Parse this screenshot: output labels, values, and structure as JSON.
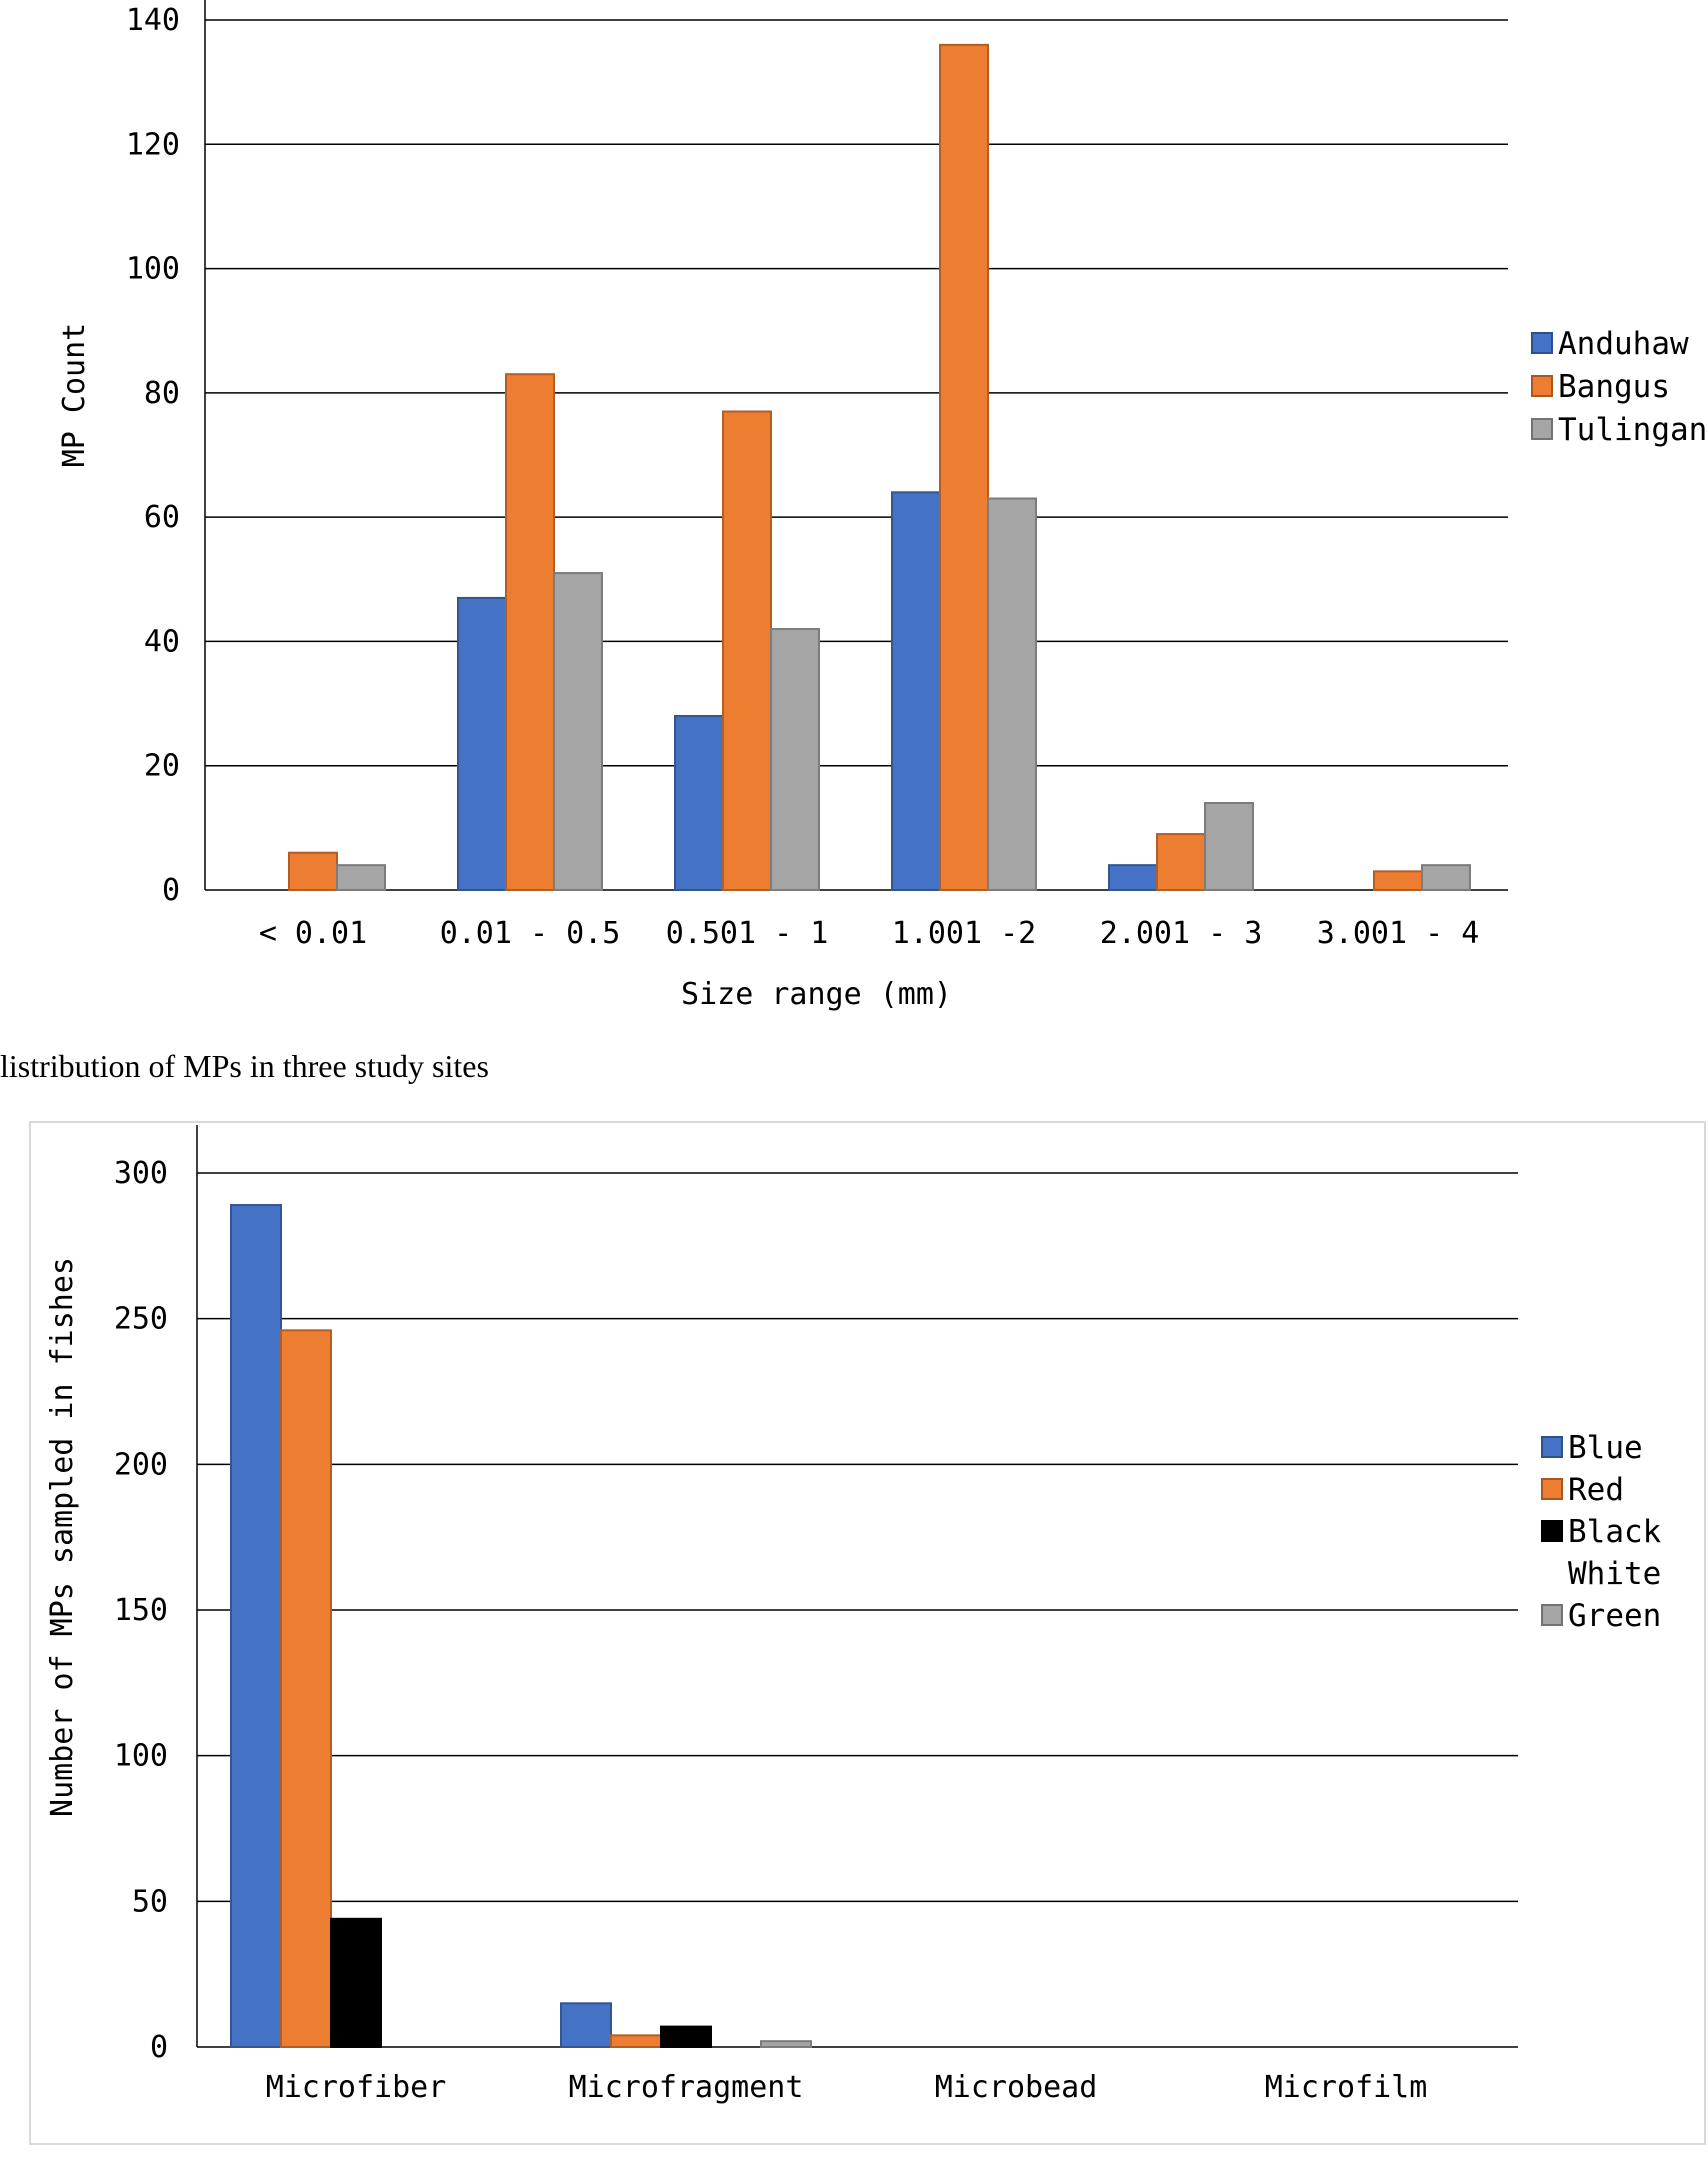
{
  "caption": "listribution of MPs in three study sites",
  "colors": {
    "blue": "#4472c4",
    "orange": "#ed7d31",
    "gray": "#a5a5a5",
    "black": "#000000"
  },
  "chart_data": [
    {
      "type": "bar",
      "xlabel": "Size range  (mm)",
      "ylabel": "MP Count",
      "ylim": [
        0,
        140
      ],
      "yticks": [
        0,
        20,
        40,
        60,
        80,
        100,
        120,
        140
      ],
      "grid": true,
      "legend": "right",
      "categories": [
        "< 0.01",
        "0.01 - 0.5",
        "0.501 - 1",
        "1.001 -2",
        "2.001 - 3",
        "3.001 - 4"
      ],
      "series": [
        {
          "name": "Anduhaw",
          "color": "#4472c4",
          "values": [
            0,
            47,
            28,
            64,
            4,
            0
          ]
        },
        {
          "name": "Bangus",
          "color": "#ed7d31",
          "values": [
            6,
            83,
            77,
            136,
            9,
            3
          ]
        },
        {
          "name": "Tulingan",
          "color": "#a5a5a5",
          "values": [
            4,
            51,
            42,
            63,
            14,
            4
          ]
        }
      ]
    },
    {
      "type": "bar",
      "xlabel": "",
      "ylabel": "Number of MPs sampled in fishes",
      "ylim": [
        0,
        300
      ],
      "yticks": [
        0,
        50,
        100,
        150,
        200,
        250,
        300
      ],
      "grid": true,
      "legend": "right",
      "categories": [
        "Microfiber",
        "Microfragment",
        "Microbead",
        "Microfilm"
      ],
      "series": [
        {
          "name": "Blue",
          "color": "#4472c4",
          "values": [
            289,
            15,
            0,
            0
          ]
        },
        {
          "name": "Red",
          "color": "#ed7d31",
          "values": [
            246,
            4,
            0,
            0
          ]
        },
        {
          "name": "Black",
          "color": "#000000",
          "values": [
            44,
            7,
            0,
            0
          ]
        },
        {
          "name": "White",
          "color": "none",
          "values": [
            0,
            0,
            0,
            0
          ]
        },
        {
          "name": "Green",
          "color": "#a5a5a5",
          "values": [
            0,
            2,
            0,
            0
          ]
        }
      ]
    }
  ]
}
